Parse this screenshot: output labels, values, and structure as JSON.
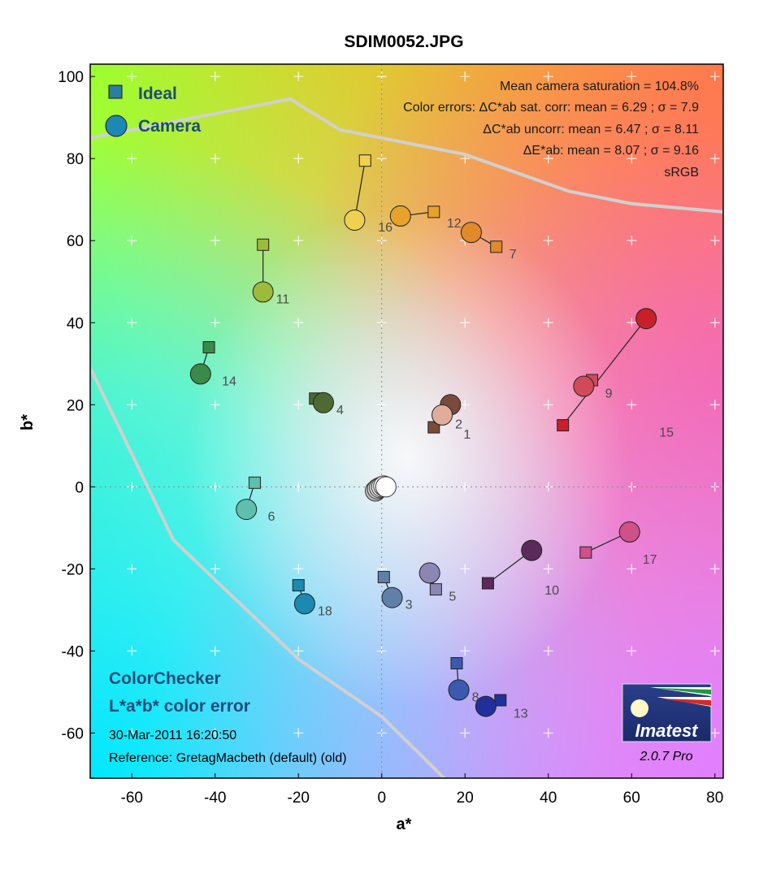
{
  "colors": {
    "camera_marker": "#1e88b5",
    "ideal_marker": "#2a7ea0",
    "text_blue": "#1d4c78",
    "gamut_line": "#d0d0d0"
  },
  "legend": {
    "ideal_label": "Ideal",
    "camera_label": "Camera"
  },
  "stats": [
    "Mean camera saturation = 104.8%",
    "Color errors: ΔC*ab sat. corr:  mean = 6.29 ;  σ = 7.9",
    "ΔC*ab uncorr:  mean = 6.47 ;  σ = 8.11",
    "ΔE*ab:  mean = 8.07 ;  σ = 9.16",
    "sRGB"
  ],
  "colorchecker": {
    "line1": "ColorChecker",
    "line2": "L*a*b* color error",
    "date": "30-Mar-2011 16:20:50",
    "reference": "Reference: GretagMacbeth (default) (old)"
  },
  "brand": {
    "name": "Imatest",
    "version": "2.0.7  Pro"
  },
  "chart_data": {
    "type": "scatter",
    "title": "SDIM0052.JPG",
    "xlabel": "a*",
    "ylabel": "b*",
    "xlim": [
      -70,
      82
    ],
    "ylim": [
      -71,
      103
    ],
    "xticks": [
      -60,
      -40,
      -20,
      0,
      20,
      40,
      60,
      80
    ],
    "yticks": [
      100,
      80,
      60,
      40,
      20,
      0,
      -20,
      -40,
      -60
    ],
    "grid": true,
    "legend_position": "top-left",
    "gamut_boundary": [
      [
        [
          -70,
          85
        ],
        [
          -22,
          94.5
        ],
        [
          -10,
          87
        ],
        [
          20,
          81
        ],
        [
          45,
          72
        ],
        [
          60,
          69
        ],
        [
          82,
          67
        ]
      ],
      [
        [
          -70,
          29
        ],
        [
          -50,
          -13
        ],
        [
          -20,
          -42
        ],
        [
          0,
          -56
        ],
        [
          15,
          -71
        ]
      ]
    ],
    "patches": [
      {
        "label": "1",
        "ideal": [
          12.5,
          14.5
        ],
        "camera": [
          16.5,
          20.0
        ],
        "color": "#7a4a3a",
        "label_side": "right"
      },
      {
        "label": "2",
        "ideal": [
          14.0,
          17.0
        ],
        "camera": [
          14.5,
          17.5
        ],
        "color": "#e0ad9a",
        "label_side": "right"
      },
      {
        "label": "3",
        "ideal": [
          0.5,
          -22.0
        ],
        "camera": [
          2.5,
          -27.0
        ],
        "color": "#6080a8",
        "label_side": "right"
      },
      {
        "label": "4",
        "ideal": [
          -16.0,
          21.5
        ],
        "camera": [
          -14.0,
          20.5
        ],
        "color": "#4d6a35",
        "label_side": "right"
      },
      {
        "label": "5",
        "ideal": [
          13.0,
          -25.0
        ],
        "camera": [
          11.5,
          -21.0
        ],
        "color": "#8c86b5",
        "label_side": "right"
      },
      {
        "label": "6",
        "ideal": [
          -30.5,
          1.0
        ],
        "camera": [
          -32.5,
          -5.5
        ],
        "color": "#5fbfaf",
        "label_side": "right"
      },
      {
        "label": "7",
        "ideal": [
          27.5,
          58.5
        ],
        "camera": [
          21.5,
          62.0
        ],
        "color": "#e08a2a",
        "label_side": "right"
      },
      {
        "label": "8",
        "ideal": [
          18.0,
          -43.0
        ],
        "camera": [
          18.5,
          -49.5
        ],
        "color": "#3a5ab0",
        "label_side": "right"
      },
      {
        "label": "9",
        "ideal": [
          50.5,
          26.0
        ],
        "camera": [
          48.5,
          24.5
        ],
        "color": "#d04a5a",
        "label_side": "right"
      },
      {
        "label": "10",
        "ideal": [
          25.5,
          -23.5
        ],
        "camera": [
          36.0,
          -15.5
        ],
        "color": "#5a2a5a",
        "label_side": "right"
      },
      {
        "label": "11",
        "ideal": [
          -28.5,
          59.0
        ],
        "camera": [
          -28.5,
          47.5
        ],
        "color": "#9cbb3a",
        "label_side": "right"
      },
      {
        "label": "12",
        "ideal": [
          12.5,
          67.0
        ],
        "camera": [
          4.5,
          66.0
        ],
        "color": "#e8a22a",
        "label_side": "right"
      },
      {
        "label": "13",
        "ideal": [
          28.5,
          -52.0
        ],
        "camera": [
          25.0,
          -53.5
        ],
        "color": "#20309a",
        "label_side": "right"
      },
      {
        "label": "14",
        "ideal": [
          -41.5,
          34.0
        ],
        "camera": [
          -43.5,
          27.5
        ],
        "color": "#3a8a4a",
        "label_side": "right"
      },
      {
        "label": "15",
        "ideal": [
          43.5,
          15.0
        ],
        "camera": [
          63.5,
          41.0
        ],
        "color": "#c8202a",
        "label_side": "right"
      },
      {
        "label": "16",
        "ideal": [
          -4.0,
          79.5
        ],
        "camera": [
          -6.5,
          65.0
        ],
        "color": "#f0d050",
        "label_side": "right"
      },
      {
        "label": "17",
        "ideal": [
          49.0,
          -16.0
        ],
        "camera": [
          59.5,
          -11.0
        ],
        "color": "#d0508a",
        "label_side": "right"
      },
      {
        "label": "18",
        "ideal": [
          -20.0,
          -24.0
        ],
        "camera": [
          -18.5,
          -28.5
        ],
        "color": "#1a8ab0",
        "label_side": "right"
      }
    ],
    "neutrals": [
      {
        "camera": [
          -1.5,
          -1.0
        ],
        "color": "#bdbdbd"
      },
      {
        "camera": [
          -1.0,
          -0.5
        ],
        "color": "#d0d0d0"
      },
      {
        "camera": [
          -0.5,
          -0.2
        ],
        "color": "#dedede"
      },
      {
        "camera": [
          0.0,
          0.0
        ],
        "color": "#ececec"
      },
      {
        "camera": [
          0.5,
          0.2
        ],
        "color": "#f6f6f6"
      },
      {
        "camera": [
          1.0,
          0.0
        ],
        "color": "#ffffff"
      }
    ]
  }
}
